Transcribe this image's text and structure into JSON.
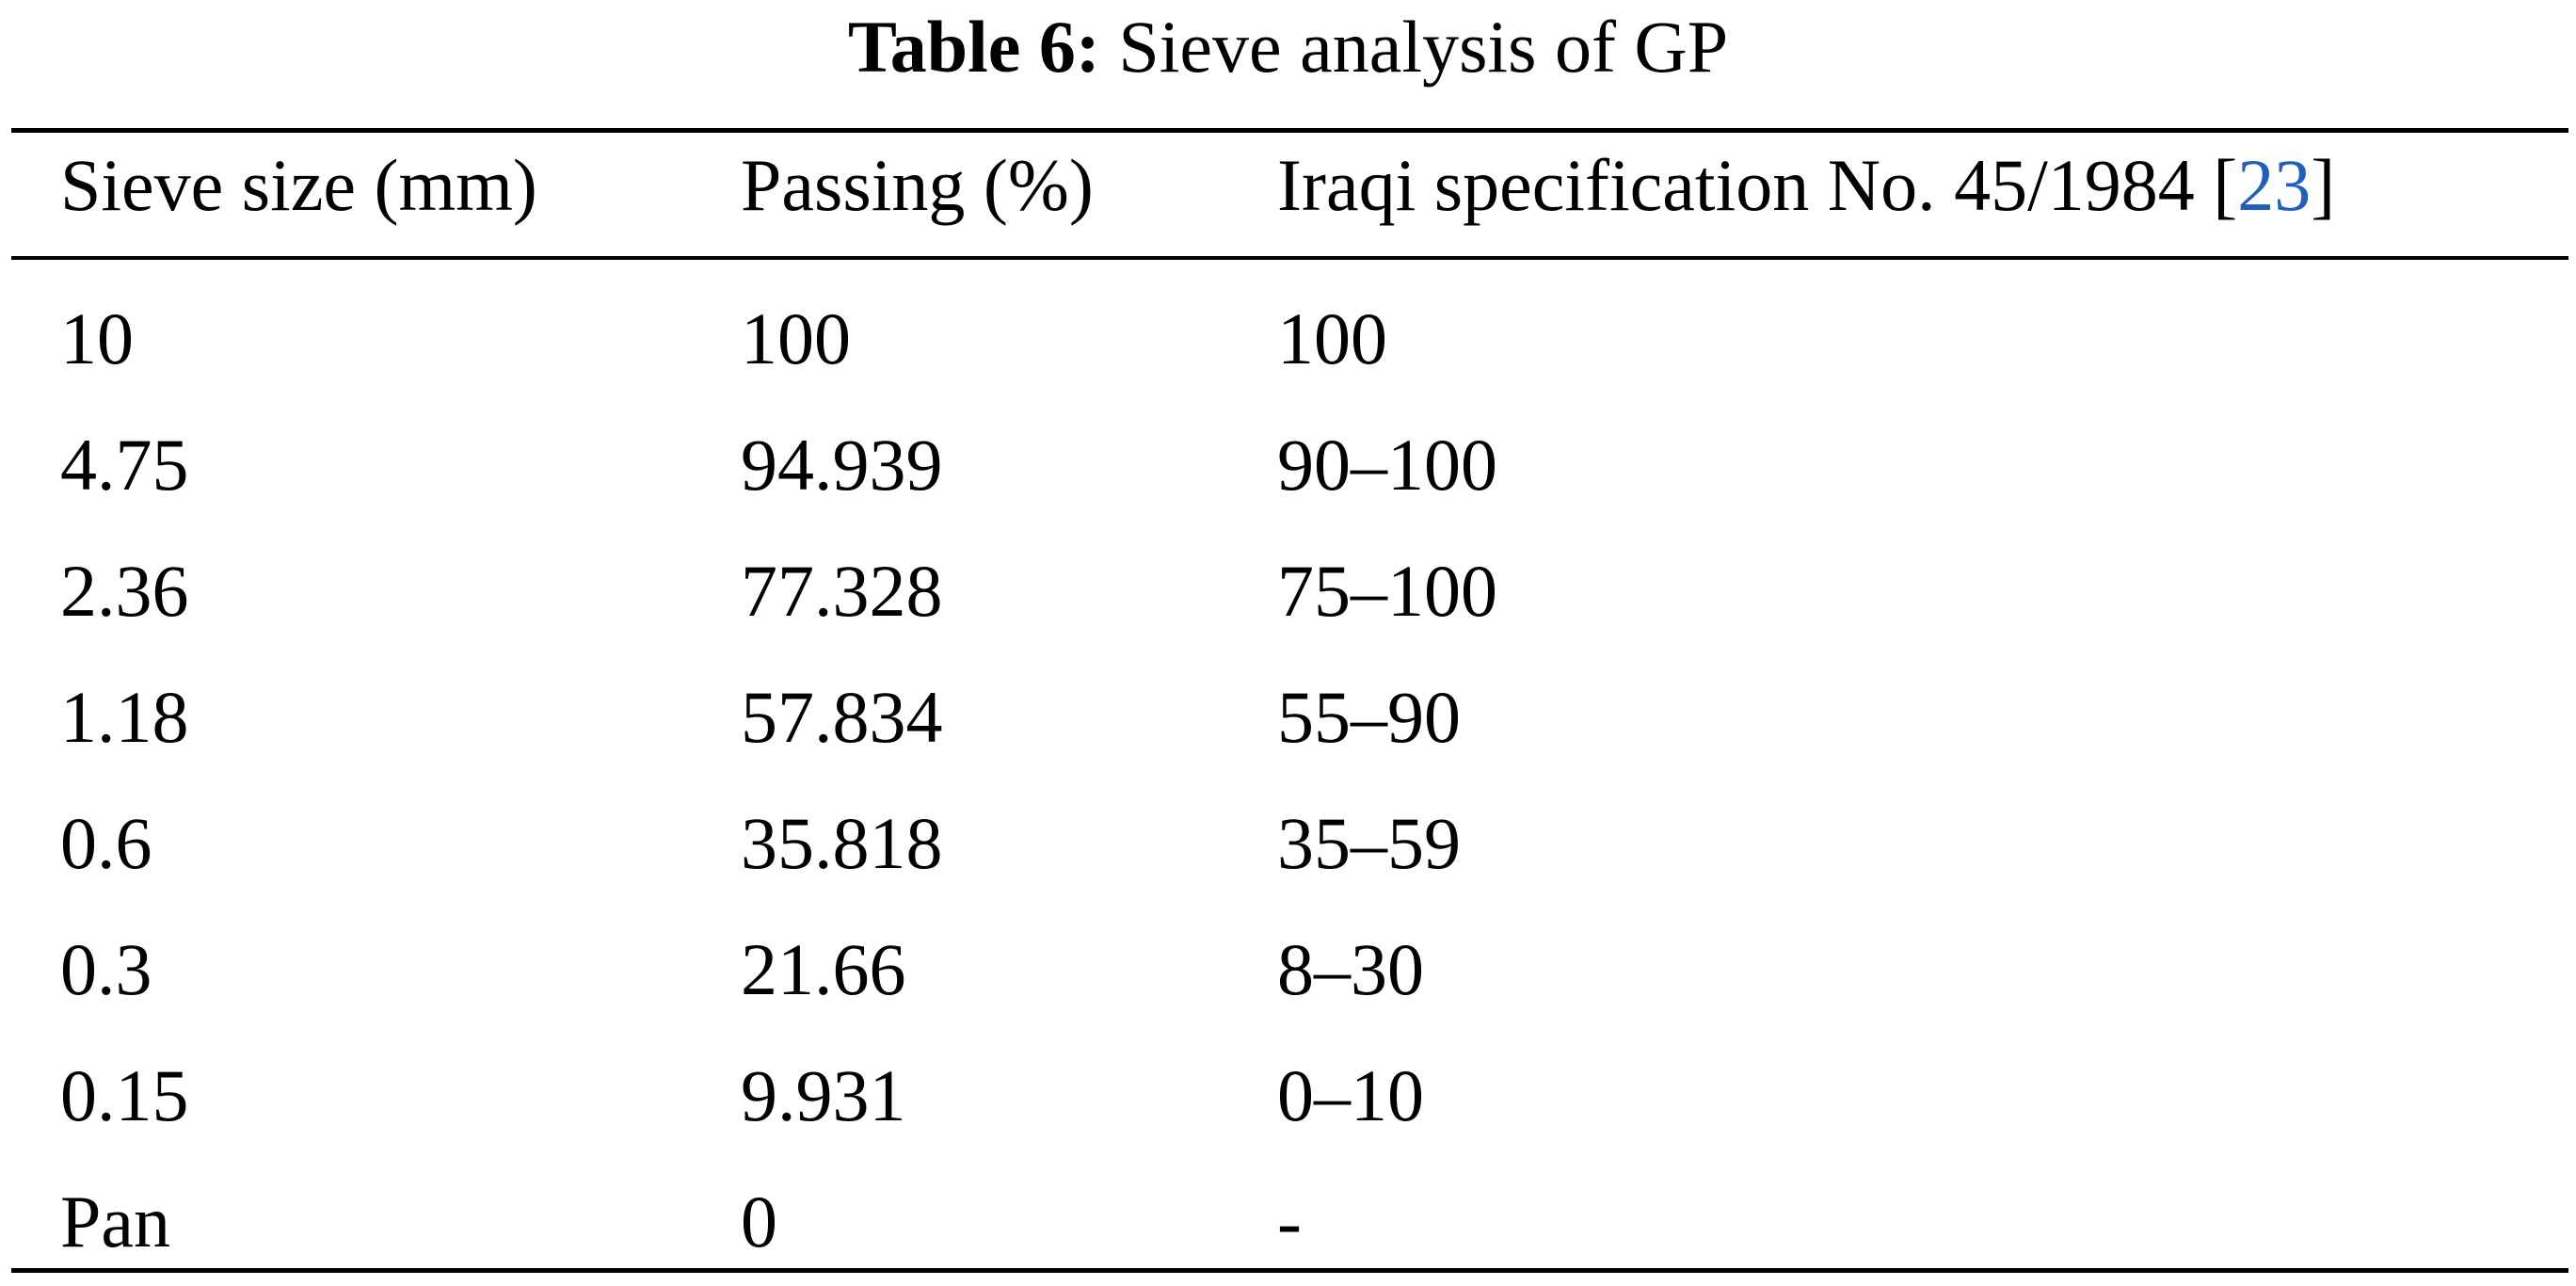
{
  "caption": {
    "label": "Table 6:",
    "text": "Sieve analysis of GP"
  },
  "headers": {
    "col1": "Sieve size (mm)",
    "col2": "Passing (%)",
    "col3": "Iraqi specification No. 45/1984",
    "ref_open": "[",
    "ref_num": "23",
    "ref_close": "]"
  },
  "rows": [
    [
      "10",
      "100",
      "100"
    ],
    [
      "4.75",
      "94.939",
      "90–100"
    ],
    [
      "2.36",
      "77.328",
      "75–100"
    ],
    [
      "1.18",
      "57.834",
      "55–90"
    ],
    [
      "0.6",
      "35.818",
      "35–59"
    ],
    [
      "0.3",
      "21.66",
      "8–30"
    ],
    [
      "0.15",
      "9.931",
      "0–10"
    ],
    [
      "Pan",
      "0",
      "-"
    ]
  ],
  "colors": {
    "text": "#000000",
    "reference_link": "#1f5fbf"
  }
}
